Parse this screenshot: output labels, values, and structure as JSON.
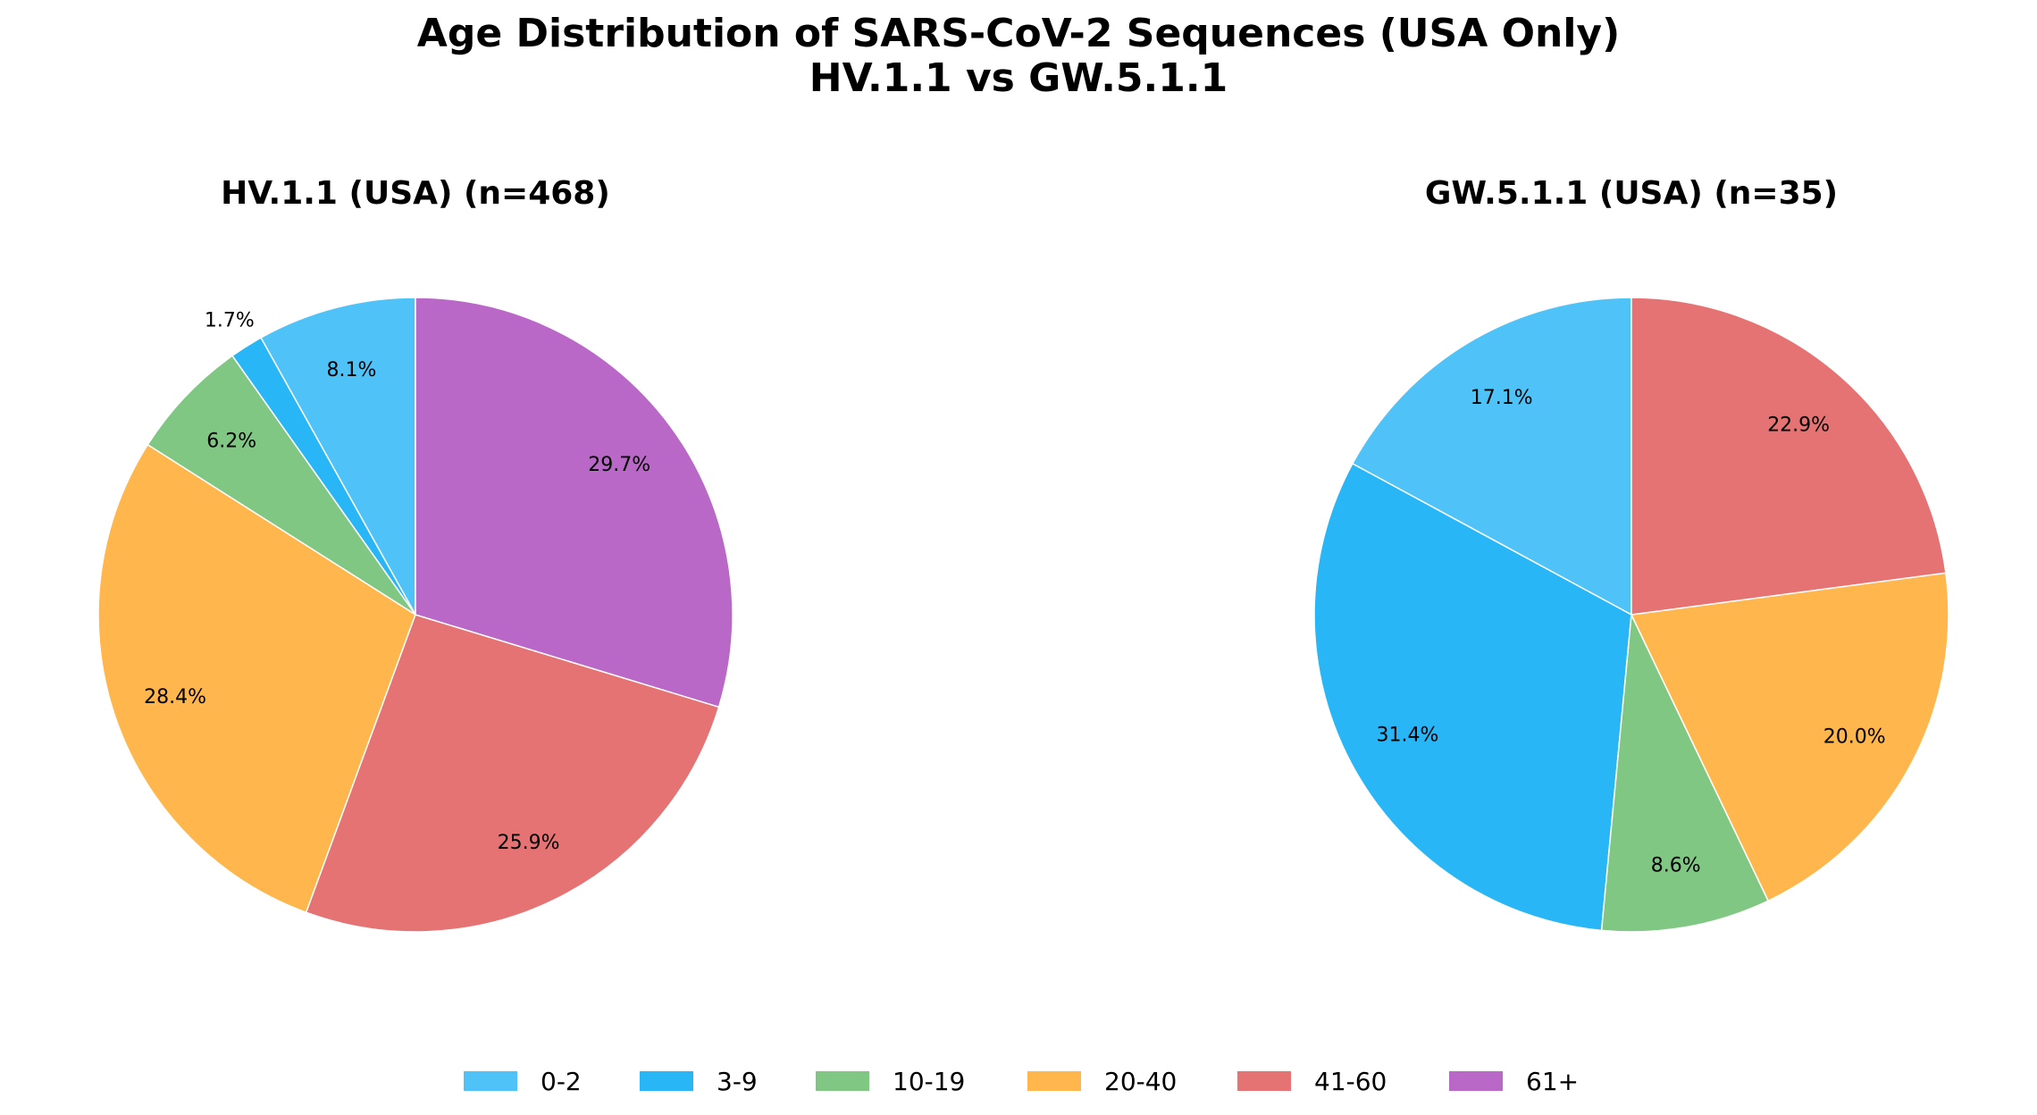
{
  "chart_data": [
    {
      "type": "pie",
      "title": "Age Distribution of SARS-CoV-2 Sequences (USA Only)\nHV.1.1 vs GW.5.1.1",
      "title_lines": [
        "Age Distribution of SARS-CoV-2 Sequences (USA Only)",
        "HV.1.1 vs GW.5.1.1"
      ],
      "subtitle": "HV.1.1 (USA) (n=468)",
      "categories": [
        "0-2",
        "3-9",
        "10-19",
        "20-40",
        "41-60",
        "61+"
      ],
      "values": [
        8.1,
        1.7,
        6.2,
        28.4,
        25.9,
        29.7
      ],
      "labels": [
        "8.1%",
        "1.7%",
        "6.2%",
        "28.4%",
        "25.9%",
        "29.7%"
      ],
      "start_angle": 90,
      "direction": "counterclockwise"
    },
    {
      "type": "pie",
      "subtitle": "GW.5.1.1 (USA) (n=35)",
      "categories": [
        "0-2",
        "3-9",
        "10-19",
        "20-40",
        "41-60"
      ],
      "values": [
        17.1,
        31.4,
        8.6,
        20.0,
        22.9
      ],
      "labels": [
        "17.1%",
        "31.4%",
        "8.6%",
        "20.0%",
        "22.9%"
      ],
      "start_angle": 90,
      "direction": "counterclockwise"
    }
  ],
  "legend": {
    "placement": "bottom-center",
    "entries": [
      "0-2",
      "3-9",
      "10-19",
      "20-40",
      "41-60",
      "61+"
    ]
  },
  "colors": {
    "0-2": "#4fc3f7",
    "3-9": "#29b6f6",
    "10-19": "#81c784",
    "20-40": "#ffb74d",
    "41-60": "#e57373",
    "61+": "#ba68c8"
  }
}
